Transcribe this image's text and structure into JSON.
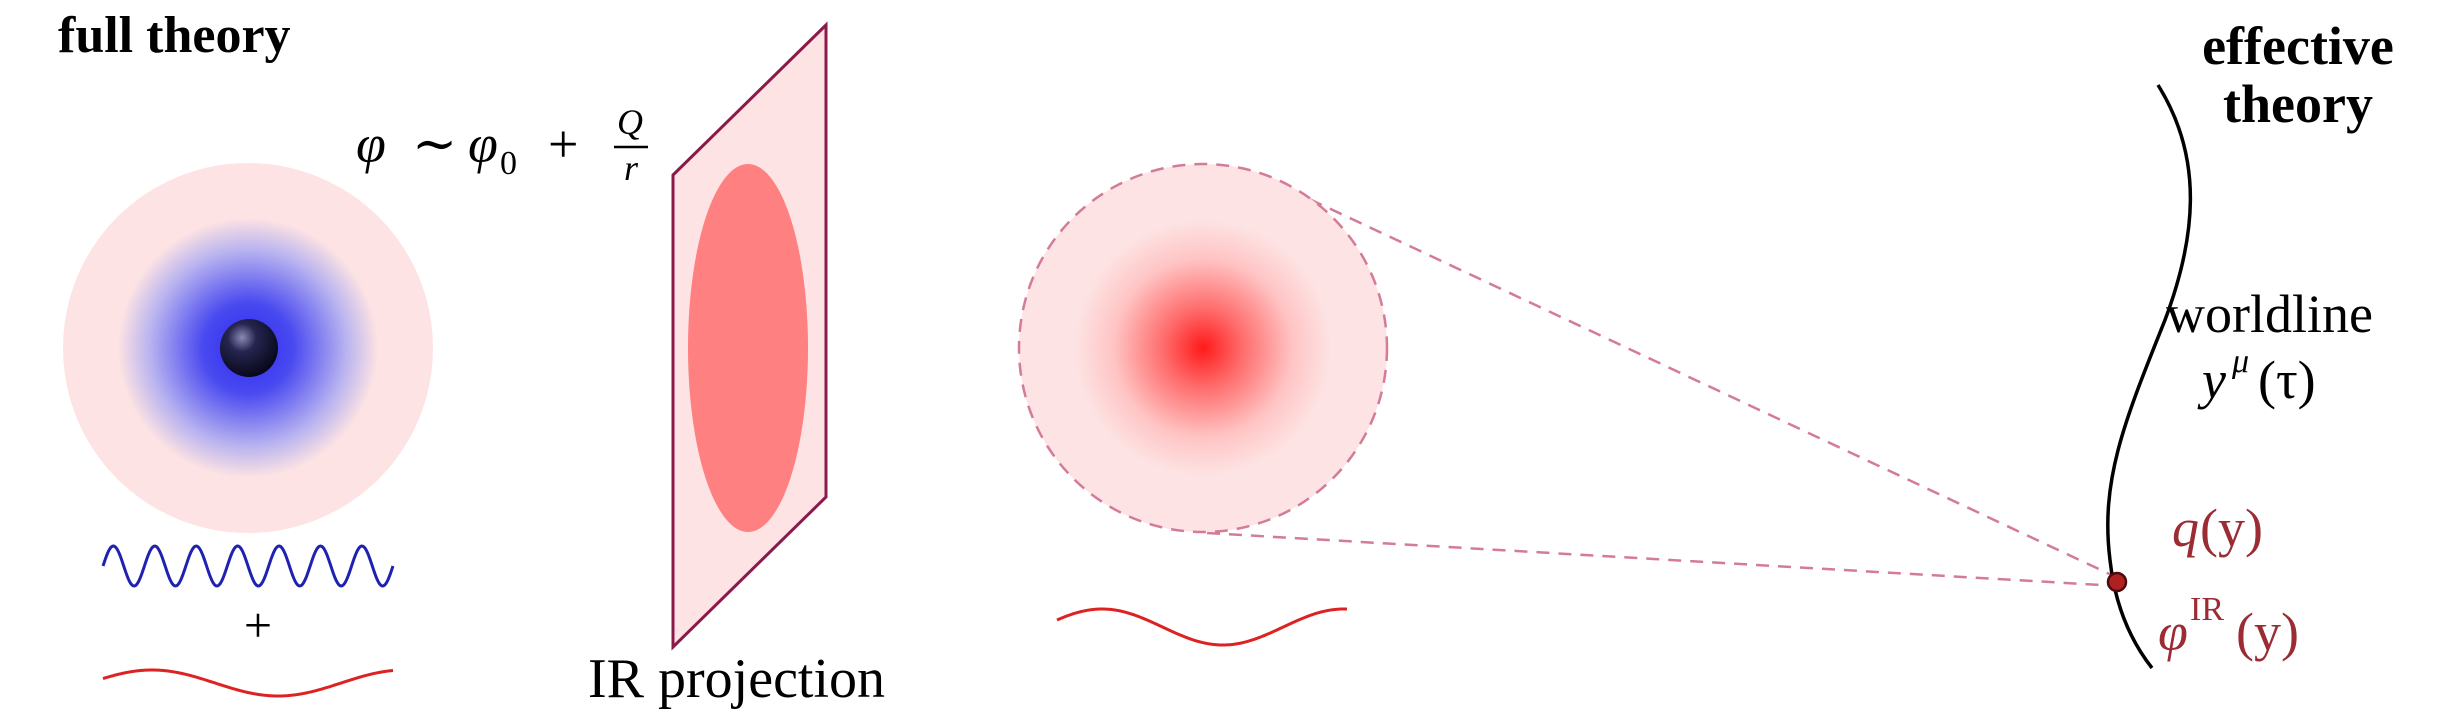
{
  "labels": {
    "full_theory": "full theory",
    "effective_theory_line1": "effective",
    "effective_theory_line2": "theory",
    "worldline_line1": "worldline",
    "ir_projection": "IR projection",
    "plus": "+"
  },
  "formulas": {
    "phi_expansion": {
      "phi": "φ",
      "sim": "∼",
      "phi0": "φ",
      "sub0": "0",
      "plus": "+",
      "Q": "Q",
      "r": "r"
    },
    "worldline_y": {
      "y": "y",
      "sup": "μ",
      "arg": "(τ)"
    },
    "charge": {
      "q": "q",
      "arg": "(y)"
    },
    "phi_ir": {
      "phi": "φ",
      "sup": "IR",
      "arg": "(y)"
    }
  },
  "colors": {
    "halo_pink": "#fde3e3",
    "core_blue": "#2d2df0",
    "particle_dark": "#12122e",
    "plane_border": "#8b1a4a",
    "plane_ellipse": "#ff8080",
    "wave_blue": "#1f22b0",
    "wave_red": "#dd2222",
    "dashed": "#d37b98",
    "ir_text": "#9b2c34"
  }
}
